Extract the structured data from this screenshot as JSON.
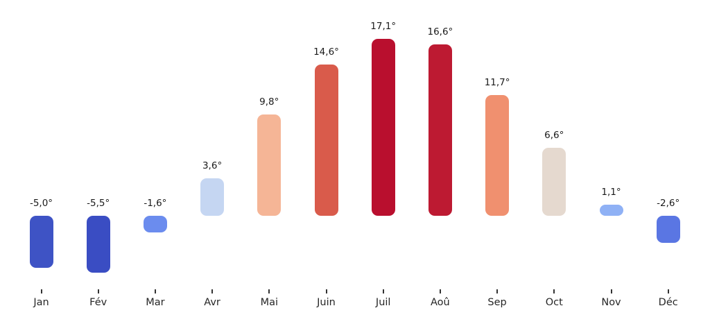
{
  "chart_data": {
    "type": "bar",
    "title": "",
    "xlabel": "",
    "ylabel": "",
    "categories": [
      "Jan",
      "Fév",
      "Mar",
      "Avr",
      "Mai",
      "Juin",
      "Juil",
      "Aoû",
      "Sep",
      "Oct",
      "Nov",
      "Déc"
    ],
    "values": [
      -5.0,
      -5.5,
      -1.6,
      3.6,
      9.8,
      14.6,
      17.1,
      16.6,
      11.7,
      6.6,
      1.1,
      -2.6
    ],
    "value_labels": [
      "-5,0°",
      "-5,5°",
      "-1,6°",
      "3,6°",
      "9,8°",
      "14,6°",
      "17,1°",
      "16,6°",
      "11,7°",
      "6,6°",
      "1,1°",
      "-2,6°"
    ],
    "bar_colors": [
      "#3e53c5",
      "#3a4dc3",
      "#6b8cee",
      "#c5d6f2",
      "#f5b596",
      "#d95b4b",
      "#b90f2e",
      "#bd1a32",
      "#f0906f",
      "#e5d9cf",
      "#8fb1f5",
      "#5a76e3"
    ],
    "unit": "°",
    "ylim": [
      -7,
      19
    ],
    "baseline_value": 0,
    "grid": false,
    "legend": null,
    "colors": {
      "background": "#ffffff",
      "value_text": "#1a1a1a",
      "axis_text": "#262626",
      "tick": "#333333"
    }
  }
}
